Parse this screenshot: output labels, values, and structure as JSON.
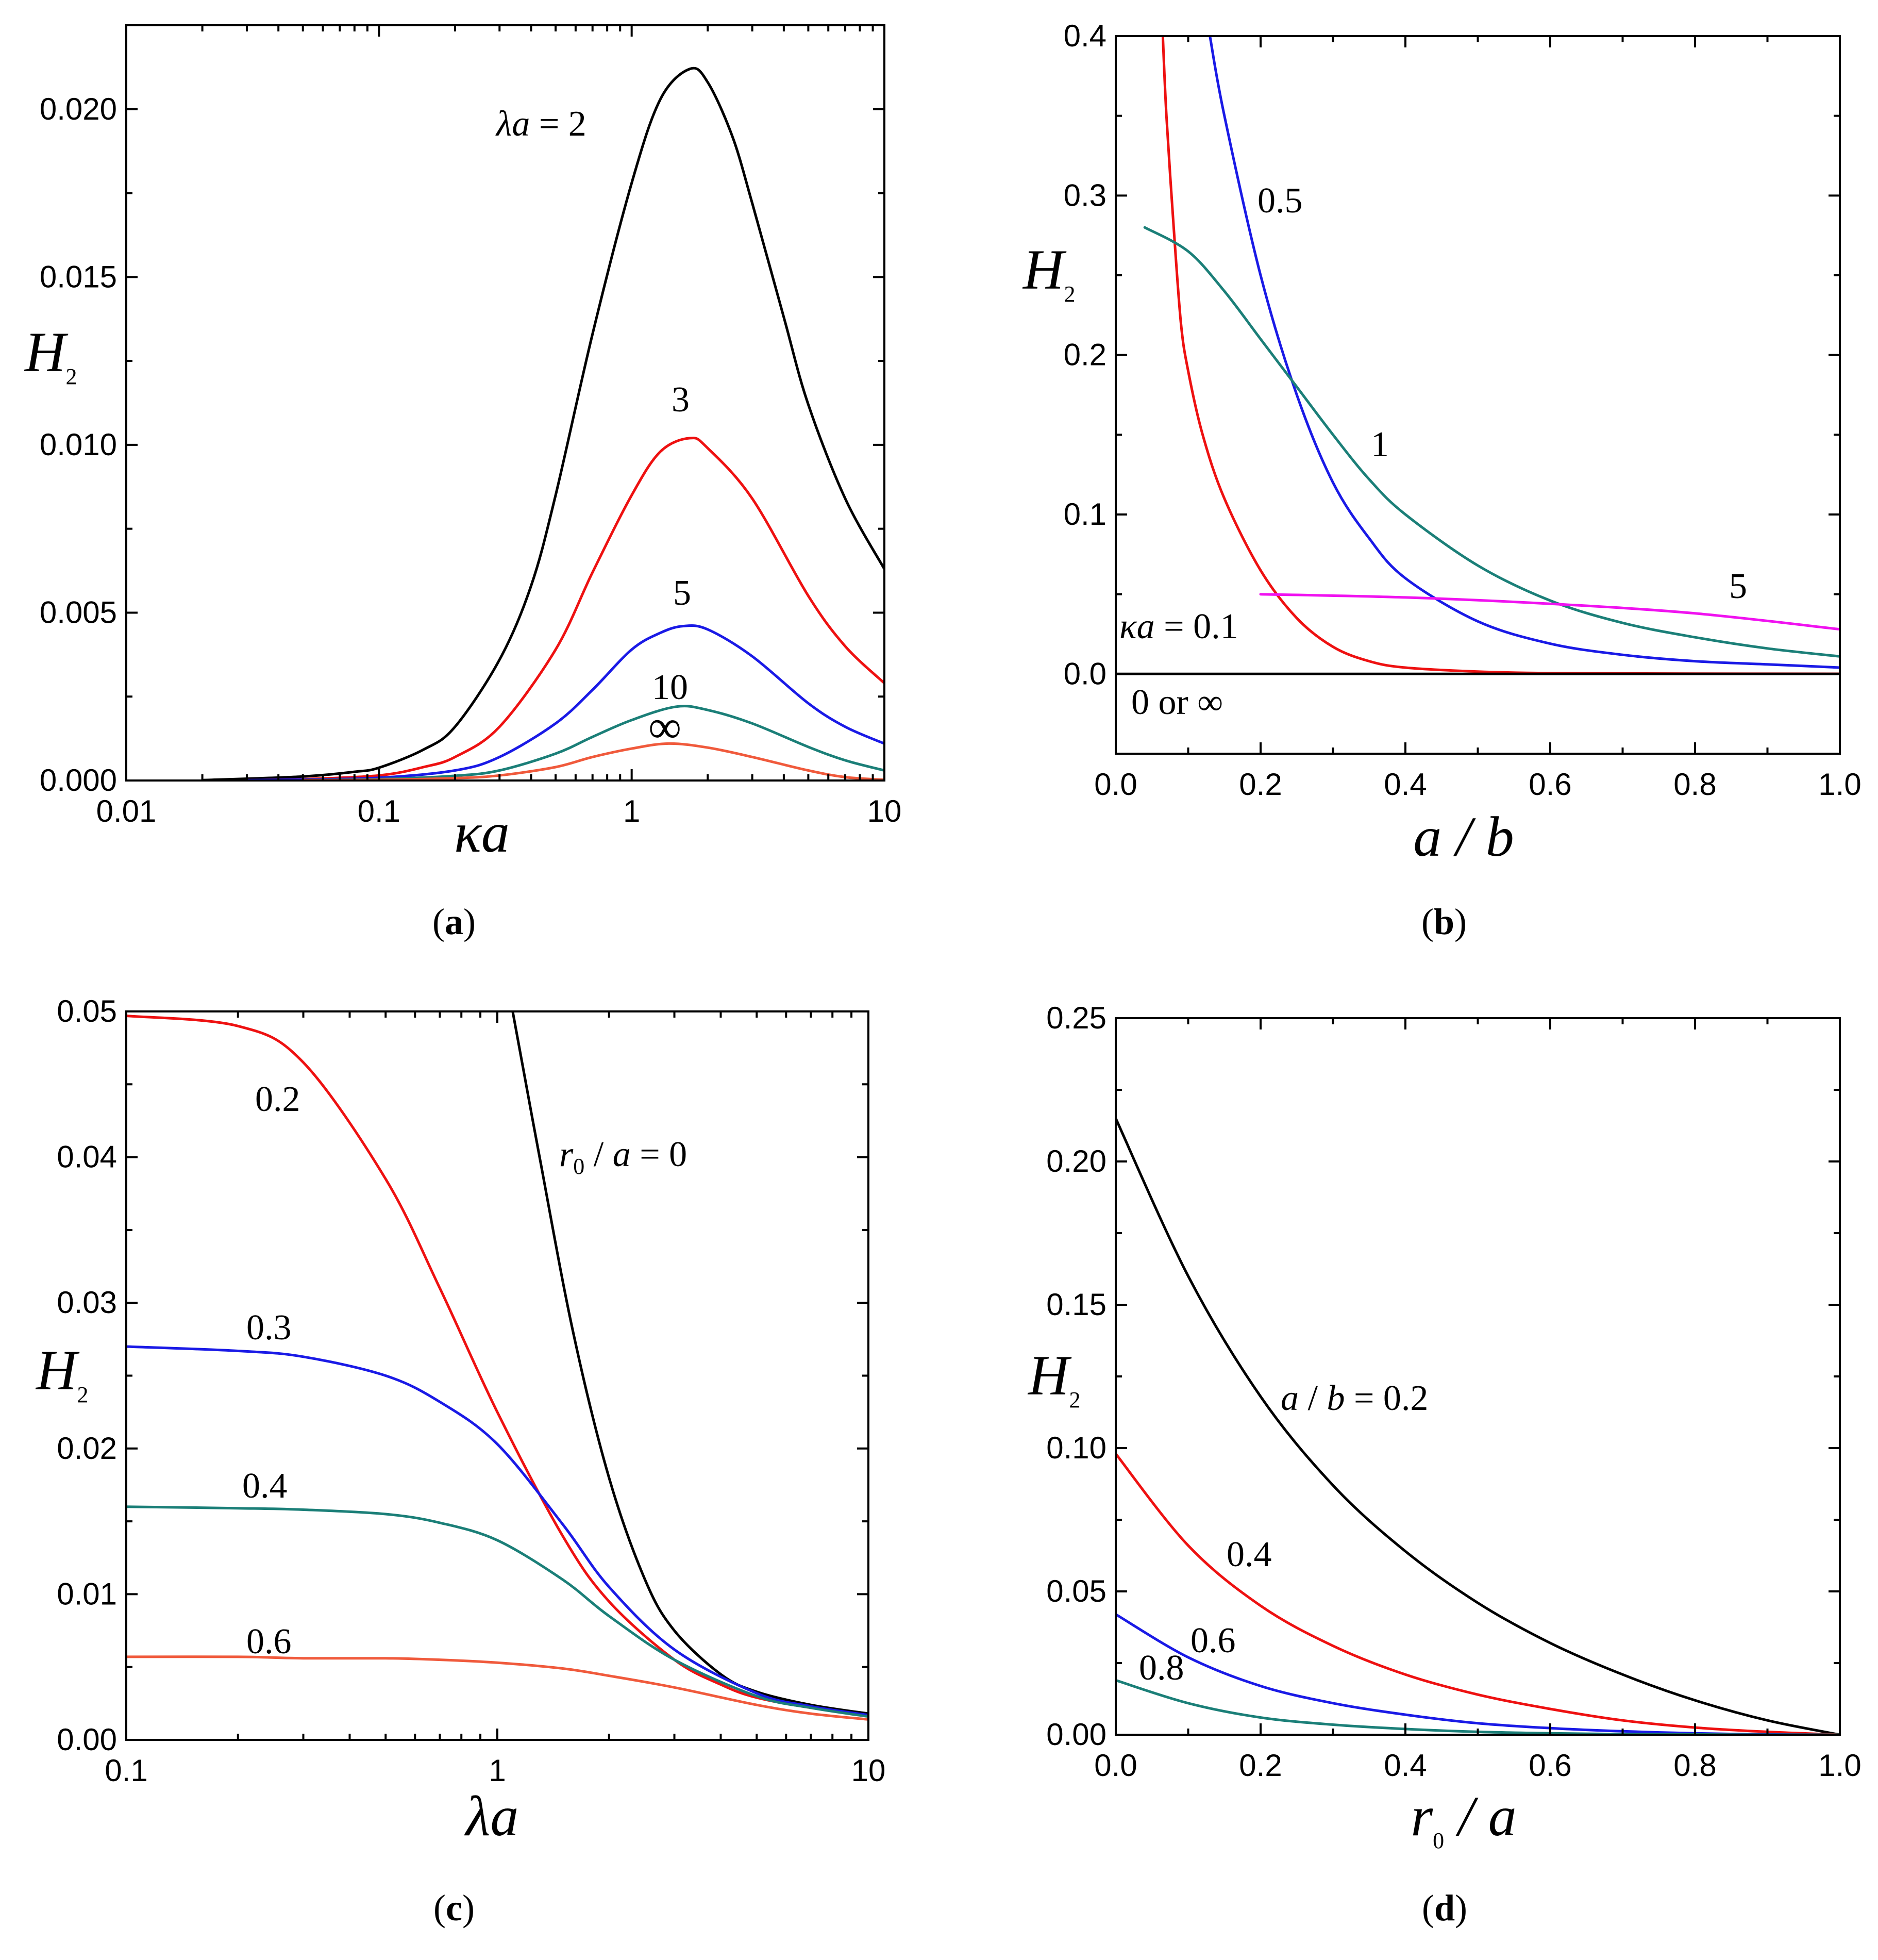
{
  "colors": {
    "black": "#000000",
    "red": "#ee1111",
    "blue": "#1a1ae6",
    "teal": "#1b7f78",
    "orange": "#f05a3c",
    "magenta": "#f012f0"
  },
  "chart_data": [
    {
      "type": "line",
      "caption": "(a)",
      "xlabel": "κa",
      "ylabel": "H2",
      "xscale": "log",
      "xlim": [
        0.01,
        10
      ],
      "ylim": [
        0,
        0.0225
      ],
      "xticks": [
        "0.01",
        "0.1",
        "1",
        "10"
      ],
      "yticks": [
        "0.000",
        "0.005",
        "0.010",
        "0.015",
        "0.020"
      ],
      "series": [
        {
          "name": "λa = 2",
          "color": "black",
          "x": [
            0.02,
            0.05,
            0.08,
            0.1,
            0.15,
            0.2,
            0.3,
            0.4,
            0.5,
            0.7,
            1,
            1.3,
            1.7,
            2,
            2.5,
            3,
            4,
            5,
            7,
            10
          ],
          "y": [
            1e-05,
            0.00012,
            0.00026,
            0.00038,
            0.00092,
            0.0016,
            0.0036,
            0.0058,
            0.0085,
            0.0133,
            0.0178,
            0.0203,
            0.0212,
            0.0208,
            0.0192,
            0.0172,
            0.0138,
            0.0112,
            0.0084,
            0.0063
          ]
        },
        {
          "name": "3",
          "color": "red",
          "x": [
            0.03,
            0.05,
            0.1,
            0.15,
            0.2,
            0.3,
            0.5,
            0.7,
            1,
            1.3,
            1.7,
            2,
            3,
            5,
            7,
            10
          ],
          "y": [
            1e-05,
            4e-05,
            0.00015,
            0.0004,
            0.0007,
            0.0016,
            0.0039,
            0.0062,
            0.0085,
            0.0098,
            0.0102,
            0.0099,
            0.0084,
            0.0055,
            0.004,
            0.0029
          ]
        },
        {
          "name": "5",
          "color": "blue",
          "x": [
            0.03,
            0.05,
            0.1,
            0.2,
            0.3,
            0.5,
            0.7,
            1,
            1.3,
            1.6,
            2,
            3,
            5,
            7,
            10
          ],
          "y": [
            1e-05,
            3e-05,
            8e-05,
            0.0003,
            0.0007,
            0.0017,
            0.0027,
            0.0039,
            0.0044,
            0.0046,
            0.0045,
            0.0037,
            0.0023,
            0.0016,
            0.0011
          ]
        },
        {
          "name": "10",
          "color": "teal",
          "x": [
            0.05,
            0.1,
            0.2,
            0.3,
            0.5,
            0.7,
            1,
            1.5,
            2,
            3,
            5,
            7,
            10
          ],
          "y": [
            1e-05,
            4e-05,
            0.00014,
            0.0003,
            0.0008,
            0.0013,
            0.0018,
            0.0022,
            0.0021,
            0.0017,
            0.001,
            0.0006,
            0.0003
          ]
        },
        {
          "name": "∞",
          "color": "orange",
          "x": [
            0.05,
            0.1,
            0.2,
            0.3,
            0.5,
            0.7,
            1,
            1.4,
            2,
            3,
            5,
            7,
            10
          ],
          "y": [
            1e-05,
            2e-05,
            7e-05,
            0.00015,
            0.0004,
            0.0007,
            0.00095,
            0.0011,
            0.00098,
            0.0007,
            0.0003,
            0.0001,
            2e-05
          ]
        }
      ]
    },
    {
      "type": "line",
      "caption": "(b)",
      "xlabel": "a / b",
      "ylabel": "H2",
      "xscale": "linear",
      "xlim": [
        0,
        1
      ],
      "ylim": [
        -0.05,
        0.4
      ],
      "xticks": [
        "0.0",
        "0.2",
        "0.4",
        "0.6",
        "0.8",
        "1.0"
      ],
      "yticks": [
        "0.0",
        "0.1",
        "0.2",
        "0.3",
        "0.4"
      ],
      "series": [
        {
          "name": "κa = 0.1",
          "color": "red",
          "x": [
            0.065,
            0.07,
            0.08,
            0.09,
            0.1,
            0.12,
            0.15,
            0.2,
            0.25,
            0.3,
            0.35,
            0.4,
            0.5,
            0.6,
            0.8,
            1.0
          ],
          "y": [
            0.4,
            0.35,
            0.28,
            0.22,
            0.19,
            0.15,
            0.11,
            0.065,
            0.035,
            0.017,
            0.008,
            0.004,
            0.0015,
            0.0005,
            0.0002,
            0.0001
          ]
        },
        {
          "name": "0.5",
          "color": "blue",
          "x": [
            0.13,
            0.15,
            0.2,
            0.25,
            0.3,
            0.35,
            0.4,
            0.5,
            0.6,
            0.7,
            0.8,
            0.9,
            1.0
          ],
          "y": [
            0.4,
            0.35,
            0.25,
            0.175,
            0.12,
            0.085,
            0.06,
            0.033,
            0.019,
            0.012,
            0.008,
            0.006,
            0.004
          ]
        },
        {
          "name": "1",
          "color": "teal",
          "x": [
            0.04,
            0.1,
            0.15,
            0.2,
            0.25,
            0.3,
            0.35,
            0.4,
            0.5,
            0.6,
            0.7,
            0.8,
            0.9,
            1.0
          ],
          "y": [
            0.28,
            0.265,
            0.24,
            0.21,
            0.18,
            0.15,
            0.122,
            0.1,
            0.068,
            0.046,
            0.032,
            0.023,
            0.016,
            0.011
          ]
        },
        {
          "name": "5",
          "color": "magenta",
          "x": [
            0.2,
            0.4,
            0.6,
            0.8,
            1.0
          ],
          "y": [
            0.05,
            0.048,
            0.044,
            0.038,
            0.028
          ]
        },
        {
          "name": "0 or ∞",
          "color": "black",
          "x": [
            0.0,
            1.0
          ],
          "y": [
            0,
            0
          ]
        }
      ]
    },
    {
      "type": "line",
      "caption": "(c)",
      "xlabel": "λa",
      "ylabel": "H2",
      "xscale": "log",
      "xlim": [
        0.1,
        10
      ],
      "ylim": [
        0,
        0.05
      ],
      "xticks": [
        "0.1",
        "1",
        "10"
      ],
      "yticks": [
        "0.00",
        "0.01",
        "0.02",
        "0.03",
        "0.04",
        "0.05"
      ],
      "series": [
        {
          "name": "r0 / a = 0",
          "color": "black",
          "x": [
            1.1,
            1.3,
            1.6,
            2,
            2.5,
            3,
            4,
            5,
            7,
            10
          ],
          "y": [
            0.05,
            0.04,
            0.028,
            0.018,
            0.011,
            0.0075,
            0.0045,
            0.0033,
            0.0024,
            0.0018
          ]
        },
        {
          "name": "0.2",
          "color": "red",
          "x": [
            0.1,
            0.2,
            0.3,
            0.5,
            0.7,
            1,
            1.5,
            2,
            3,
            4,
            5,
            7,
            10
          ],
          "y": [
            0.0497,
            0.049,
            0.0465,
            0.0385,
            0.031,
            0.0225,
            0.014,
            0.0095,
            0.0055,
            0.0038,
            0.0029,
            0.0022,
            0.0017
          ]
        },
        {
          "name": "0.3",
          "color": "blue",
          "x": [
            0.1,
            0.2,
            0.3,
            0.5,
            0.7,
            1,
            1.5,
            2,
            3,
            5,
            7,
            10
          ],
          "y": [
            0.027,
            0.0267,
            0.0263,
            0.025,
            0.0232,
            0.0203,
            0.0148,
            0.0105,
            0.0062,
            0.0032,
            0.0023,
            0.0017
          ]
        },
        {
          "name": "0.4",
          "color": "teal",
          "x": [
            0.1,
            0.2,
            0.3,
            0.5,
            0.7,
            1,
            1.5,
            2,
            3,
            5,
            7,
            10
          ],
          "y": [
            0.016,
            0.0159,
            0.0158,
            0.0155,
            0.0149,
            0.0137,
            0.011,
            0.0085,
            0.0055,
            0.003,
            0.0022,
            0.0016
          ]
        },
        {
          "name": "0.6",
          "color": "orange",
          "x": [
            0.1,
            0.2,
            0.3,
            0.5,
            0.7,
            1,
            1.5,
            2,
            3,
            5,
            7,
            10
          ],
          "y": [
            0.0057,
            0.0057,
            0.0056,
            0.0056,
            0.0055,
            0.0053,
            0.0049,
            0.0044,
            0.0036,
            0.0024,
            0.0018,
            0.0014
          ]
        }
      ]
    },
    {
      "type": "line",
      "caption": "(d)",
      "xlabel": "r0 / a",
      "ylabel": "H2",
      "xscale": "linear",
      "xlim": [
        0,
        1
      ],
      "ylim": [
        0,
        0.25
      ],
      "xticks": [
        "0.0",
        "0.2",
        "0.4",
        "0.6",
        "0.8",
        "1.0"
      ],
      "yticks": [
        "0.00",
        "0.05",
        "0.10",
        "0.15",
        "0.20",
        "0.25"
      ],
      "series": [
        {
          "name": "a / b = 0.2",
          "color": "black",
          "x": [
            0,
            0.1,
            0.2,
            0.3,
            0.4,
            0.5,
            0.6,
            0.7,
            0.8,
            0.9,
            1.0
          ],
          "y": [
            0.215,
            0.16,
            0.118,
            0.087,
            0.064,
            0.046,
            0.032,
            0.021,
            0.012,
            0.005,
            0
          ]
        },
        {
          "name": "0.4",
          "color": "red",
          "x": [
            0,
            0.1,
            0.2,
            0.3,
            0.4,
            0.5,
            0.6,
            0.7,
            0.8,
            0.9,
            1.0
          ],
          "y": [
            0.098,
            0.066,
            0.045,
            0.031,
            0.021,
            0.014,
            0.009,
            0.005,
            0.0025,
            0.001,
            0
          ]
        },
        {
          "name": "0.6",
          "color": "blue",
          "x": [
            0,
            0.1,
            0.2,
            0.3,
            0.4,
            0.5,
            0.6,
            0.7,
            0.8,
            0.9,
            1.0
          ],
          "y": [
            0.042,
            0.027,
            0.017,
            0.011,
            0.007,
            0.004,
            0.0023,
            0.0012,
            0.0005,
            0.0001,
            0
          ]
        },
        {
          "name": "0.8",
          "color": "teal",
          "x": [
            0,
            0.1,
            0.2,
            0.3,
            0.4,
            0.5,
            0.6,
            0.7,
            0.8,
            0.9,
            1.0
          ],
          "y": [
            0.019,
            0.011,
            0.006,
            0.0035,
            0.002,
            0.001,
            0.0005,
            0.0002,
            0.0001,
            0,
            0
          ]
        }
      ]
    }
  ]
}
